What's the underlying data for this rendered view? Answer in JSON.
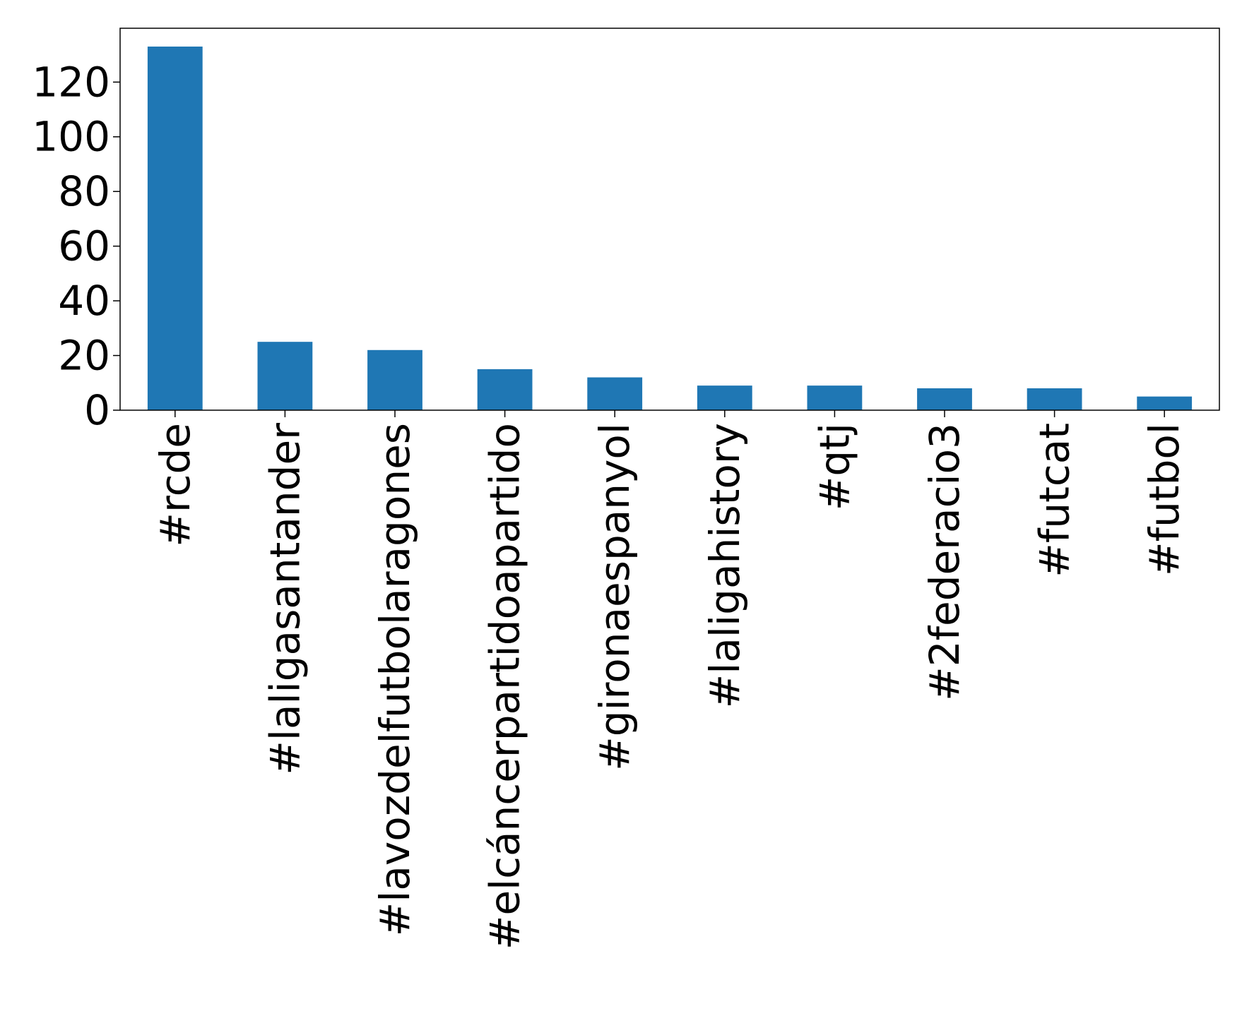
{
  "chart_data": {
    "type": "bar",
    "title": "",
    "xlabel": "",
    "ylabel": "",
    "categories": [
      "#rcde",
      "#laligasantander",
      "#lavozdelfutbolaragones",
      "#elcáncerpartidoapartido",
      "#gironaespanyol",
      "#laligahistory",
      "#qtj",
      "#2federacio3",
      "#futcat",
      "#futbol"
    ],
    "values": [
      133,
      25,
      22,
      15,
      12,
      9,
      9,
      8,
      8,
      5
    ],
    "ylim": [
      0,
      139.7
    ],
    "yticks": [
      0,
      20,
      40,
      60,
      80,
      100,
      120
    ],
    "ytick_labels": [
      "0",
      "20",
      "40",
      "60",
      "80",
      "100",
      "120"
    ],
    "grid": false,
    "legend": "none",
    "colors": {
      "bar": "#1f77b4",
      "axis": "#000000",
      "background": "#ffffff"
    }
  }
}
